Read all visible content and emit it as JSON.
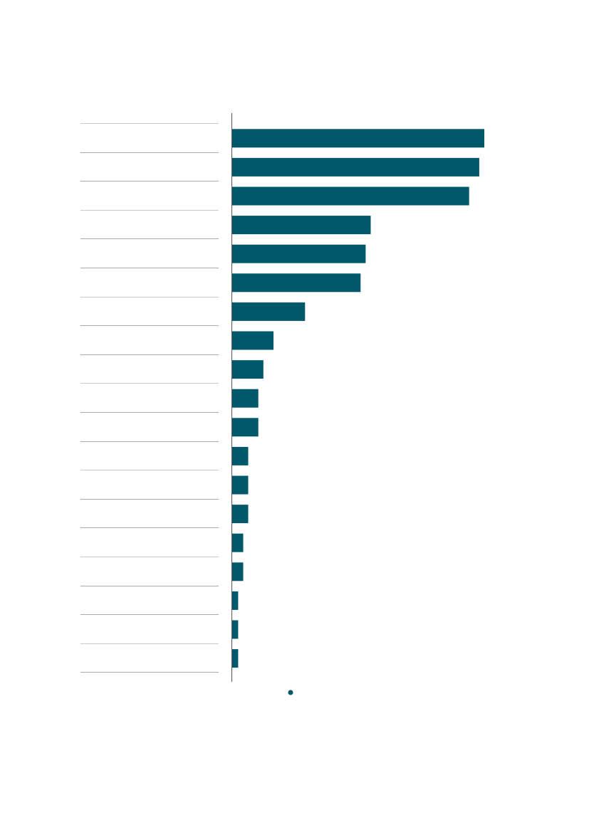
{
  "chart_data": {
    "type": "bar",
    "orientation": "horizontal",
    "title": "",
    "xlabel": "",
    "ylabel": "",
    "legend_placement": "bottom-center",
    "grid": false,
    "series": [
      {
        "name": "",
        "color": "#00586B",
        "values": [
          100,
          98,
          94,
          55,
          53,
          51,
          29,
          16.5,
          12.5,
          10.5,
          10.5,
          6.5,
          6.5,
          6.5,
          4.5,
          4.5,
          2.5,
          2.5,
          2.5
        ]
      }
    ],
    "categories": [
      "",
      "",
      "",
      "",
      "",
      "",
      "",
      "",
      "",
      "",
      "",
      "",
      "",
      "",
      "",
      "",
      "",
      "",
      ""
    ],
    "xlim": [
      0,
      100
    ]
  }
}
